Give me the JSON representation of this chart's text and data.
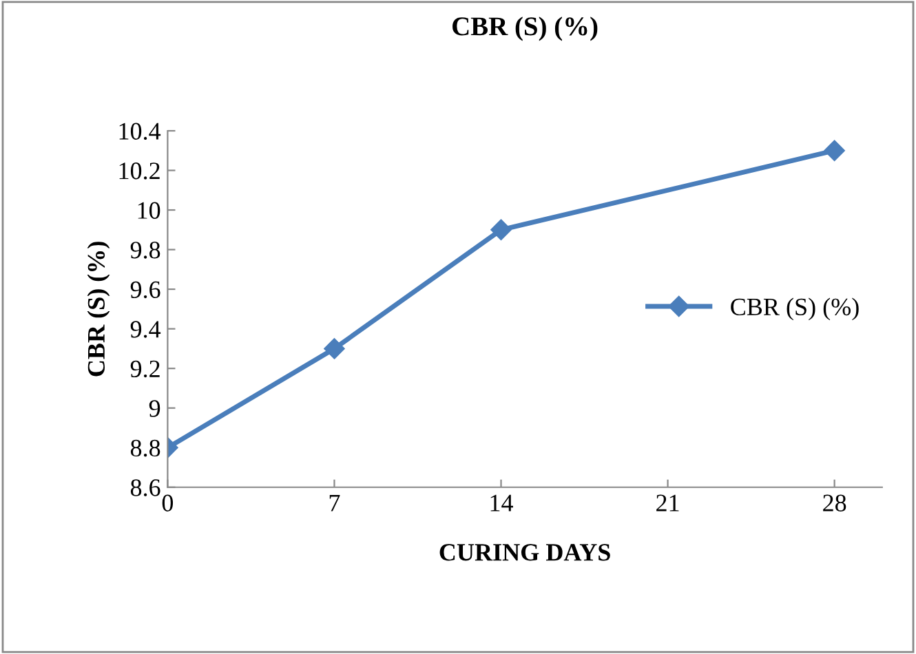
{
  "chart_data": {
    "type": "line",
    "title": "CBR (S) (%)",
    "xlabel": "CURING DAYS",
    "ylabel": "CBR (S) (%)",
    "x": [
      0,
      7,
      14,
      28
    ],
    "series": [
      {
        "name": "CBR (S) (%)",
        "color": "#4a7ebb",
        "values": [
          8.8,
          9.3,
          9.9,
          10.3
        ]
      }
    ],
    "xlim": [
      0,
      30
    ],
    "xticks": [
      0,
      7,
      14,
      21,
      28
    ],
    "ylim": [
      8.6,
      10.4
    ],
    "yticks": [
      8.6,
      8.8,
      9,
      9.2,
      9.4,
      9.6,
      9.8,
      10,
      10.2,
      10.4
    ],
    "grid": false,
    "legend": "right",
    "marker": "diamond",
    "line_style": "solid"
  }
}
